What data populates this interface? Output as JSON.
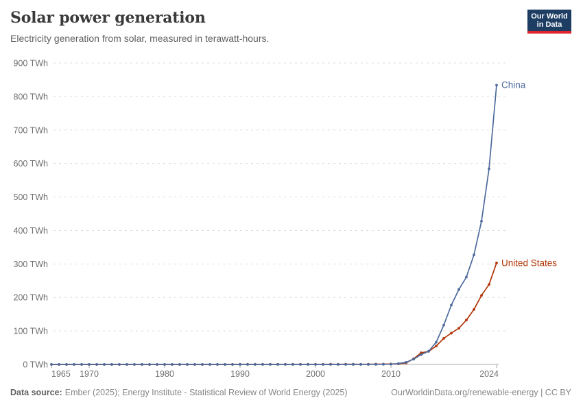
{
  "header": {
    "title": "Solar power generation",
    "subtitle": "Electricity generation from solar, measured in terawatt-hours.",
    "logo": {
      "line1": "Our World",
      "line2": "in Data",
      "bg_color": "#1d3d63",
      "accent_color": "#e0232d"
    }
  },
  "chart_data": {
    "type": "line",
    "title": "Solar power generation",
    "unit": "TWh",
    "xlim": [
      1965,
      2024
    ],
    "ylim": [
      0,
      900
    ],
    "grid": "horizontal-dashed",
    "legend_position": "end-of-line-labels",
    "y_ticks": [
      {
        "value": 0,
        "label": "0 TWh"
      },
      {
        "value": 100,
        "label": "100 TWh"
      },
      {
        "value": 200,
        "label": "200 TWh"
      },
      {
        "value": 300,
        "label": "300 TWh"
      },
      {
        "value": 400,
        "label": "400 TWh"
      },
      {
        "value": 500,
        "label": "500 TWh"
      },
      {
        "value": 600,
        "label": "600 TWh"
      },
      {
        "value": 700,
        "label": "700 TWh"
      },
      {
        "value": 800,
        "label": "800 TWh"
      },
      {
        "value": 900,
        "label": "900 TWh"
      }
    ],
    "x_ticks": [
      {
        "year": 1965,
        "label": "1965"
      },
      {
        "year": 1970,
        "label": "1970"
      },
      {
        "year": 1980,
        "label": "1980"
      },
      {
        "year": 1990,
        "label": "1990"
      },
      {
        "year": 2000,
        "label": "2000"
      },
      {
        "year": 2010,
        "label": "2010"
      },
      {
        "year": 2024,
        "label": "2024"
      }
    ],
    "x_start_year": 1965,
    "series": [
      {
        "name": "United States",
        "color": "#B13507",
        "years_start": 1965,
        "values": [
          0,
          0,
          0,
          0,
          0,
          0,
          0,
          0,
          0,
          0,
          0,
          0,
          0,
          0,
          0,
          0,
          0,
          0,
          0,
          0,
          0,
          0,
          0,
          0,
          0.3,
          0.4,
          0.4,
          0.4,
          0.5,
          0.5,
          0.5,
          0.5,
          0.5,
          0.5,
          0.5,
          0.5,
          0.5,
          0.6,
          0.5,
          0.6,
          0.6,
          0.5,
          0.6,
          0.9,
          0.9,
          1.2,
          1.8,
          4.3,
          16.8,
          34.6,
          39.0,
          54.9,
          77.9,
          93.4,
          107.9,
          132.6,
          164.0,
          206.1,
          238.8,
          303.2
        ]
      },
      {
        "name": "China",
        "color": "#4C6A9C",
        "years_start": 1965,
        "values": [
          0,
          0,
          0,
          0,
          0,
          0,
          0,
          0,
          0,
          0,
          0,
          0,
          0,
          0,
          0,
          0,
          0,
          0,
          0,
          0,
          0,
          0,
          0,
          0,
          0,
          0,
          0,
          0,
          0,
          0,
          0,
          0,
          0,
          0,
          0,
          0.02,
          0.03,
          0.04,
          0.05,
          0.06,
          0.08,
          0.1,
          0.12,
          0.15,
          0.36,
          0.7,
          2.6,
          6.3,
          15.5,
          29.2,
          39.5,
          66.2,
          117.5,
          176.9,
          223.8,
          261.1,
          327.0,
          427.8,
          584.2,
          834.1
        ]
      }
    ]
  },
  "footer": {
    "source_label": "Data source:",
    "source_text": "Ember (2025); Energy Institute - Statistical Review of World Energy (2025)",
    "link_text": "OurWorldinData.org/renewable-energy | CC BY"
  }
}
